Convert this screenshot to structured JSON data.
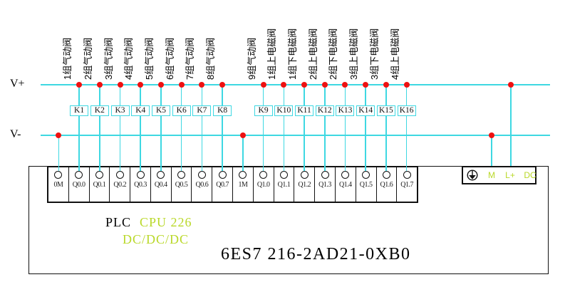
{
  "rails": {
    "positive_label": "V+",
    "negative_label": "V-"
  },
  "branch_labels": [
    "1组气动阀",
    "2组气动阀",
    "3组气动阀",
    "4组气动阀",
    "5组气动阀",
    "6组气动阀",
    "7组气动阀",
    "8组气动阀",
    "9组气动阀",
    "1组上电磁阀",
    "1组下电磁阀",
    "2组上电磁阀",
    "2组下电磁阀",
    "3组上电磁阀",
    "3组下电磁阀",
    "4组上电磁阀"
  ],
  "relay_labels": [
    "K1",
    "K2",
    "K3",
    "K4",
    "K5",
    "K6",
    "K7",
    "K8",
    "K9",
    "K10",
    "K11",
    "K12",
    "K13",
    "K14",
    "K15",
    "K16"
  ],
  "terminal_labels": [
    "0M",
    "Q0.0",
    "Q0.1",
    "Q0.2",
    "Q0.3",
    "Q0.4",
    "Q0.5",
    "Q0.6",
    "Q0.7",
    "1M",
    "Q1.0",
    "Q1.1",
    "Q1.2",
    "Q1.3",
    "Q1.4",
    "Q1.5",
    "Q1.6",
    "Q1.7"
  ],
  "power_terminals": {
    "ground_icon": "earth-ground-icon",
    "labels": [
      "M",
      "L+",
      "DC"
    ]
  },
  "plc": {
    "name": "PLC",
    "cpu": "CPU 226",
    "supply": "DC/DC/DC",
    "model": "6ES7 216-2AD21-0XB0"
  },
  "colors": {
    "wire": "#3ed8e2",
    "junction_dot": "#ee1111",
    "green_text": "#b9d828"
  }
}
